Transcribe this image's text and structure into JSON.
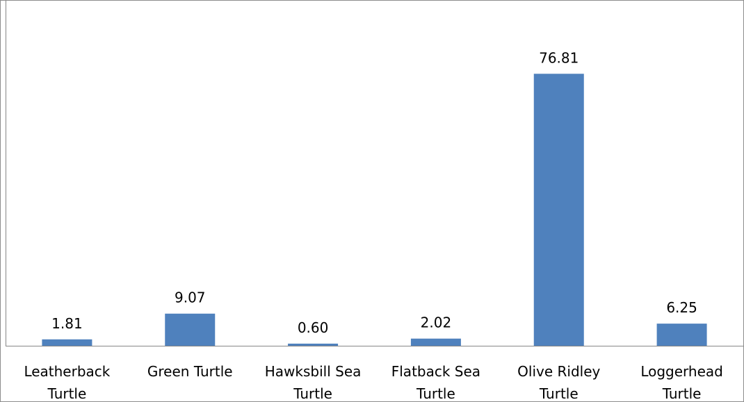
{
  "chart_data": {
    "type": "bar",
    "categories": [
      [
        "Leatherback",
        "Turtle"
      ],
      [
        "Green Turtle"
      ],
      [
        "Hawksbill Sea",
        "Turtle"
      ],
      [
        "Flatback Sea",
        "Turtle"
      ],
      [
        "Olive Ridley",
        "Turtle"
      ],
      [
        "Loggerhead",
        "Turtle"
      ]
    ],
    "values": [
      1.81,
      9.07,
      0.6,
      2.02,
      76.81,
      6.25
    ],
    "data_labels": [
      "1.81",
      "9.07",
      "0.60",
      "2.02",
      "76.81",
      "6.25"
    ],
    "ylim": [
      0,
      86
    ],
    "grid": false,
    "legend": "none",
    "title": "",
    "xlabel": "",
    "ylabel": "",
    "bar_color": "#4f81bd",
    "axis_color": "#868686"
  }
}
